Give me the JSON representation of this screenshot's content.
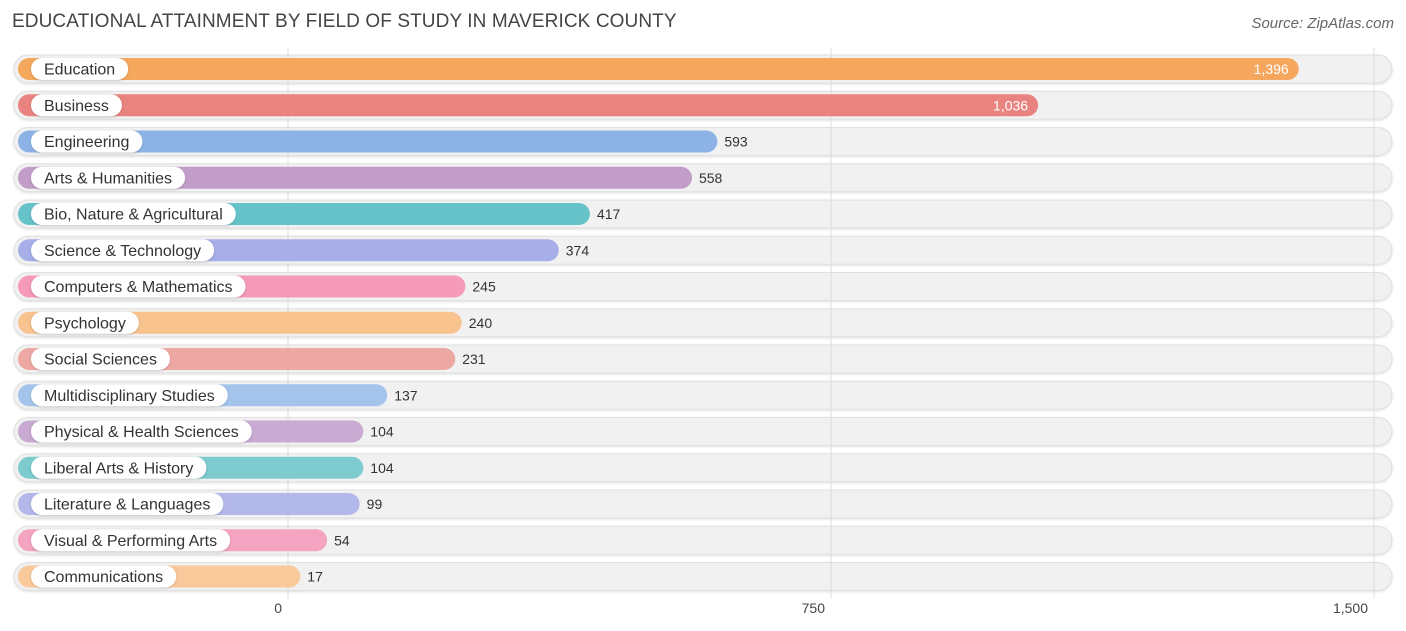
{
  "chart_data": {
    "type": "bar",
    "orientation": "horizontal",
    "title": "EDUCATIONAL ATTAINMENT BY FIELD OF STUDY IN MAVERICK COUNTY",
    "source": "Source: ZipAtlas.com",
    "xlim": [
      0,
      1500
    ],
    "ticks": [
      {
        "value": 0,
        "label": "0"
      },
      {
        "value": 750,
        "label": "750"
      },
      {
        "value": 1500,
        "label": "1,500"
      }
    ],
    "grid": true,
    "categories": [
      "Education",
      "Business",
      "Engineering",
      "Arts & Humanities",
      "Bio, Nature & Agricultural",
      "Science & Technology",
      "Computers & Mathematics",
      "Psychology",
      "Social Sciences",
      "Multidisciplinary Studies",
      "Physical & Health Sciences",
      "Liberal Arts & History",
      "Literature & Languages",
      "Visual & Performing Arts",
      "Communications"
    ],
    "values": [
      1396,
      1036,
      593,
      558,
      417,
      374,
      245,
      240,
      231,
      137,
      104,
      104,
      99,
      54,
      17
    ],
    "value_labels": [
      "1,396",
      "1,036",
      "593",
      "558",
      "417",
      "374",
      "245",
      "240",
      "231",
      "137",
      "104",
      "104",
      "99",
      "54",
      "17"
    ],
    "colors": [
      "#f6a75e",
      "#e8837f",
      "#8db3e6",
      "#c29dca",
      "#66c3c9",
      "#a7aee8",
      "#f59ab8",
      "#f8c38f",
      "#eea8a4",
      "#a4c4ec",
      "#c8aad2",
      "#7dcbcf",
      "#b3b8ea",
      "#f4a3c1",
      "#f9c99b"
    ]
  }
}
